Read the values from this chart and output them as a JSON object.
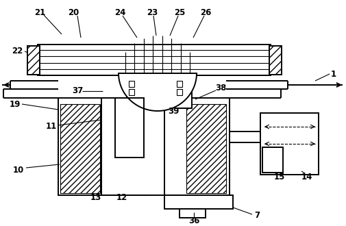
{
  "bg_color": "#ffffff",
  "lc": "#000000",
  "lw": 1.4,
  "lw_thin": 0.8,
  "figsize": [
    5.05,
    3.3
  ],
  "dpi": 100
}
